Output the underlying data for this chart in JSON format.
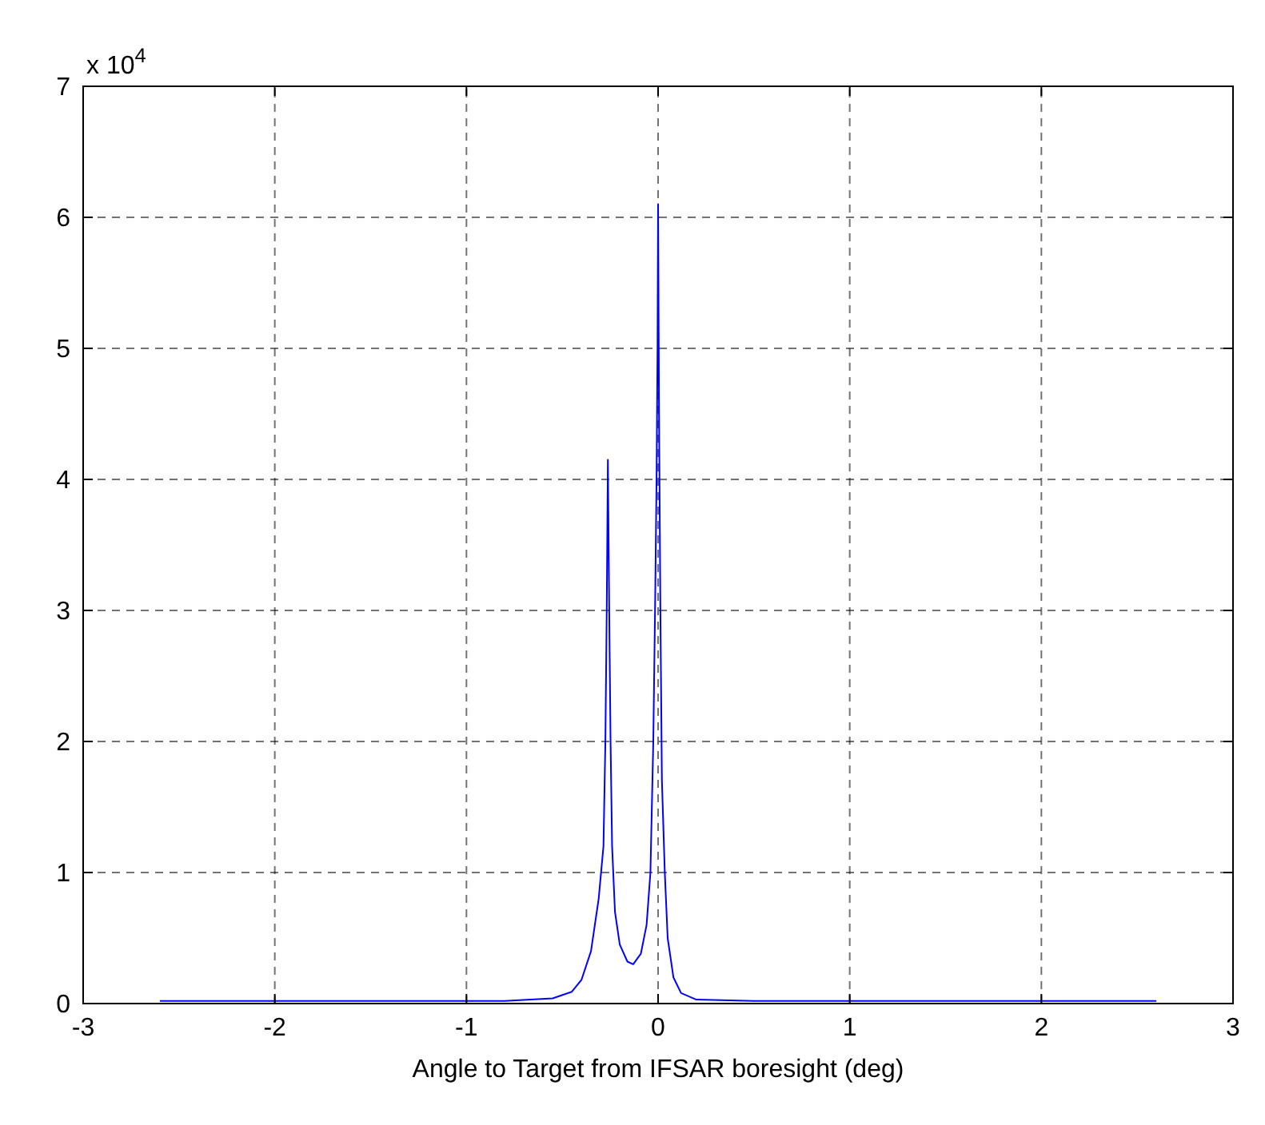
{
  "chart_data": {
    "type": "line",
    "xlabel": "Angle to Target from IFSAR boresight (deg)",
    "annotations": [
      "x 10$^{4}$"
    ],
    "xlim": [
      -3,
      3
    ],
    "xticks": [
      -3,
      -2,
      -1,
      0,
      1,
      2,
      3
    ],
    "ylim": [
      0,
      7
    ],
    "yticks": [
      0,
      1,
      2,
      3,
      4,
      5,
      6,
      7
    ],
    "grid": true,
    "line_style": "solid",
    "series": [
      {
        "color": "#0000ff",
        "x": [
          -2.6,
          -1.5,
          -0.8,
          -0.55,
          -0.45,
          -0.4,
          -0.35,
          -0.31,
          -0.285,
          -0.275,
          -0.268,
          -0.262,
          -0.255,
          -0.248,
          -0.24,
          -0.225,
          -0.2,
          -0.16,
          -0.13,
          -0.09,
          -0.06,
          -0.04,
          -0.025,
          -0.015,
          -0.008,
          -0.003,
          0,
          0.005,
          0.012,
          0.02,
          0.035,
          0.05,
          0.08,
          0.12,
          0.2,
          0.5,
          2.6
        ],
        "values": [
          0.02,
          0.02,
          0.02,
          0.04,
          0.09,
          0.18,
          0.4,
          0.8,
          1.2,
          2,
          3,
          4.15,
          3,
          2,
          1.2,
          0.7,
          0.45,
          0.32,
          0.3,
          0.38,
          0.6,
          1,
          2,
          3.1,
          4,
          5,
          6.1,
          4.5,
          3,
          1.7,
          1,
          0.5,
          0.2,
          0.08,
          0.03,
          0.02,
          0.02
        ]
      }
    ]
  }
}
